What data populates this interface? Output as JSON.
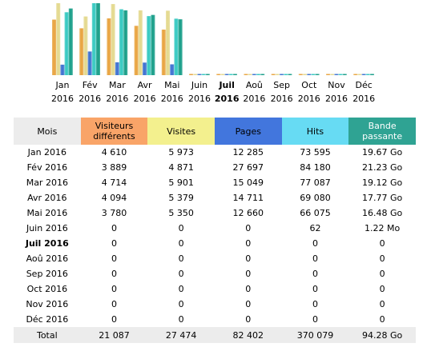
{
  "chart_data": {
    "type": "bar",
    "categories": [
      "Jan 2016",
      "Fév 2016",
      "Mar 2016",
      "Avr 2016",
      "Mai 2016",
      "Juin 2016",
      "Juil 2016",
      "Aoû 2016",
      "Sep 2016",
      "Oct 2016",
      "Nov 2016",
      "Déc 2016"
    ],
    "category_labels": [
      [
        "Jan",
        "2016"
      ],
      [
        "Fév",
        "2016"
      ],
      [
        "Mar",
        "2016"
      ],
      [
        "Avr",
        "2016"
      ],
      [
        "Mai",
        "2016"
      ],
      [
        "Juin",
        "2016"
      ],
      [
        "Juil",
        "2016"
      ],
      [
        "Aoû",
        "2016"
      ],
      [
        "Sep",
        "2016"
      ],
      [
        "Oct",
        "2016"
      ],
      [
        "Nov",
        "2016"
      ],
      [
        "Déc",
        "2016"
      ]
    ],
    "current_category": 6,
    "series": [
      {
        "name": "Visiteurs différents",
        "color": "#e8a23c",
        "values": [
          4610,
          3889,
          4714,
          4094,
          3780,
          0,
          0,
          0,
          0,
          0,
          0,
          0
        ]
      },
      {
        "name": "Visites",
        "color": "#e3d88c",
        "values": [
          5973,
          4871,
          5901,
          5379,
          5350,
          0,
          0,
          0,
          0,
          0,
          0,
          0
        ]
      },
      {
        "name": "Pages",
        "color": "#3a6fd0",
        "values": [
          12285,
          27697,
          15049,
          14711,
          12660,
          0,
          0,
          0,
          0,
          0,
          0,
          0
        ]
      },
      {
        "name": "Hits",
        "color": "#33c8c0",
        "values": [
          73595,
          84180,
          77087,
          69080,
          66075,
          62,
          0,
          0,
          0,
          0,
          0,
          0
        ]
      },
      {
        "name": "Bande passante",
        "color": "#149c86",
        "values": [
          19.67,
          21.23,
          19.12,
          17.77,
          16.48,
          0.0012,
          0,
          0,
          0,
          0,
          0,
          0
        ],
        "unit": "Go"
      }
    ],
    "axis_groups": {
      "visitors_visits_max": 5973,
      "pages_hits_max": 84180,
      "bandwidth_max": 21.23
    },
    "grid": false,
    "legend": "none"
  },
  "table": {
    "headers": {
      "month": "Mois",
      "visitors": [
        "Visiteurs",
        "différents"
      ],
      "visits": "Visites",
      "pages": "Pages",
      "hits": "Hits",
      "bandwidth": [
        "Bande",
        "passante"
      ]
    },
    "header_colors": {
      "month": "#ececec",
      "visitors": "#f9a468",
      "visits": "#f3f08e",
      "pages": "#4276dd",
      "hits": "#67dbf3",
      "bandwidth": "#2fa393"
    },
    "rows": [
      {
        "month": "Jan 2016",
        "visitors": "4 610",
        "visits": "5 973",
        "pages": "12 285",
        "hits": "73 595",
        "bandwidth": "19.67 Go"
      },
      {
        "month": "Fév 2016",
        "visitors": "3 889",
        "visits": "4 871",
        "pages": "27 697",
        "hits": "84 180",
        "bandwidth": "21.23 Go"
      },
      {
        "month": "Mar 2016",
        "visitors": "4 714",
        "visits": "5 901",
        "pages": "15 049",
        "hits": "77 087",
        "bandwidth": "19.12 Go"
      },
      {
        "month": "Avr 2016",
        "visitors": "4 094",
        "visits": "5 379",
        "pages": "14 711",
        "hits": "69 080",
        "bandwidth": "17.77 Go"
      },
      {
        "month": "Mai 2016",
        "visitors": "3 780",
        "visits": "5 350",
        "pages": "12 660",
        "hits": "66 075",
        "bandwidth": "16.48 Go"
      },
      {
        "month": "Juin 2016",
        "visitors": "0",
        "visits": "0",
        "pages": "0",
        "hits": "62",
        "bandwidth": "1.22 Mo"
      },
      {
        "month": "Juil 2016",
        "visitors": "0",
        "visits": "0",
        "pages": "0",
        "hits": "0",
        "bandwidth": "0",
        "current": true
      },
      {
        "month": "Aoû 2016",
        "visitors": "0",
        "visits": "0",
        "pages": "0",
        "hits": "0",
        "bandwidth": "0"
      },
      {
        "month": "Sep 2016",
        "visitors": "0",
        "visits": "0",
        "pages": "0",
        "hits": "0",
        "bandwidth": "0"
      },
      {
        "month": "Oct 2016",
        "visitors": "0",
        "visits": "0",
        "pages": "0",
        "hits": "0",
        "bandwidth": "0"
      },
      {
        "month": "Nov 2016",
        "visitors": "0",
        "visits": "0",
        "pages": "0",
        "hits": "0",
        "bandwidth": "0"
      },
      {
        "month": "Déc 2016",
        "visitors": "0",
        "visits": "0",
        "pages": "0",
        "hits": "0",
        "bandwidth": "0"
      }
    ],
    "total": {
      "month": "Total",
      "visitors": "21 087",
      "visits": "27 474",
      "pages": "82 402",
      "hits": "370 079",
      "bandwidth": "94.28 Go"
    }
  }
}
